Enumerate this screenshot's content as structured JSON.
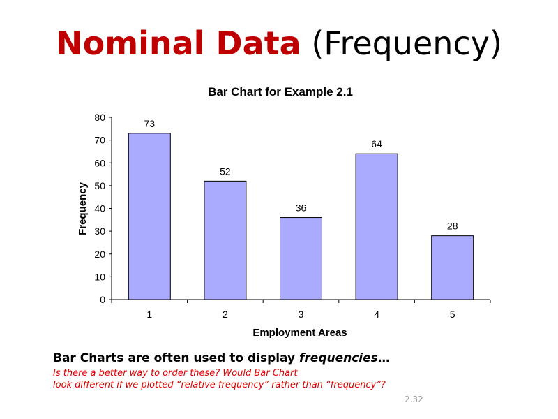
{
  "slide": {
    "title_strong": "Nominal Data",
    "title_rest": "(Frequency)",
    "caption_prefix": "Bar Charts are often used to display ",
    "caption_emphasis": "frequencies",
    "caption_suffix": "…",
    "question_line1": "Is there a better way to order these? Would Bar Chart",
    "question_line2": "look different if we plotted “relative frequency” rather than “frequency”?",
    "slide_number": "2.32"
  },
  "colors": {
    "title_accent": "#c00000",
    "question_text": "#e00000",
    "bar_fill": "#aaaaff",
    "bar_stroke": "#000000"
  },
  "chart_data": {
    "type": "bar",
    "title": "Bar Chart for Example 2.1",
    "xlabel": "Employment Areas",
    "ylabel": "Frequency",
    "categories": [
      "1",
      "2",
      "3",
      "4",
      "5"
    ],
    "values": [
      73,
      52,
      36,
      64,
      28
    ],
    "ylim": [
      0,
      80
    ],
    "yticks": [
      0,
      10,
      20,
      30,
      40,
      50,
      60,
      70,
      80
    ],
    "grid": false,
    "data_labels": true
  }
}
